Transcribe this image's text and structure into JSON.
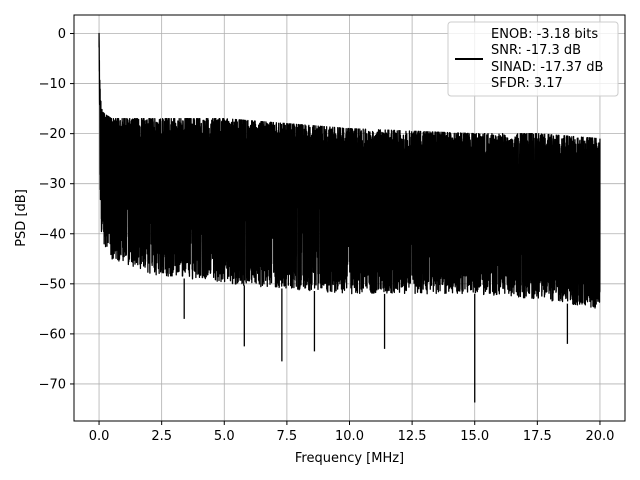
{
  "chart_data": {
    "type": "line",
    "title": "",
    "xlabel": "Frequency [MHz]",
    "ylabel": "PSD [dB]",
    "xlim": [
      -1.0,
      21.0
    ],
    "ylim": [
      -77.4,
      3.7
    ],
    "xticks": [
      0.0,
      2.5,
      5.0,
      7.5,
      10.0,
      12.5,
      15.0,
      17.5,
      20.0
    ],
    "xtick_labels": [
      "0.0",
      "2.5",
      "5.0",
      "7.5",
      "10.0",
      "12.5",
      "15.0",
      "17.5",
      "20.0"
    ],
    "yticks": [
      0,
      -10,
      -20,
      -30,
      -40,
      -50,
      -60,
      -70
    ],
    "ytick_labels": [
      "0",
      "−10",
      "−20",
      "−30",
      "−40",
      "−50",
      "−60",
      "−70"
    ],
    "grid": true,
    "legend": {
      "placement": "top-right",
      "entries": [
        "ENOB: -3.18 bits",
        "SNR: -17.3 dB",
        "SINAD: -17.37 dB",
        "SFDR: 3.17"
      ]
    },
    "series": [
      {
        "color": "#000000",
        "description_points": {
          "x": [
            0.0,
            0.02,
            0.05,
            0.1,
            0.2,
            0.5,
            2.0,
            5.0,
            10.0,
            15.0,
            17.5,
            20.0
          ],
          "y_peak_envelope": [
            0,
            -8,
            -12,
            -14,
            -16,
            -17,
            -17,
            -17,
            -19,
            -20,
            -20,
            -21
          ],
          "y_floor_envelope": [
            -10,
            -20,
            -35,
            -40,
            -42,
            -45,
            -48,
            -50,
            -52,
            -52,
            -53,
            -55
          ]
        },
        "notable_dips": [
          {
            "x": 3.4,
            "y": -57
          },
          {
            "x": 5.8,
            "y": -62.5
          },
          {
            "x": 7.3,
            "y": -65.5
          },
          {
            "x": 8.6,
            "y": -63.5
          },
          {
            "x": 11.4,
            "y": -63
          },
          {
            "x": 15.0,
            "y": -73.7
          },
          {
            "x": 18.7,
            "y": -62
          }
        ]
      }
    ]
  }
}
